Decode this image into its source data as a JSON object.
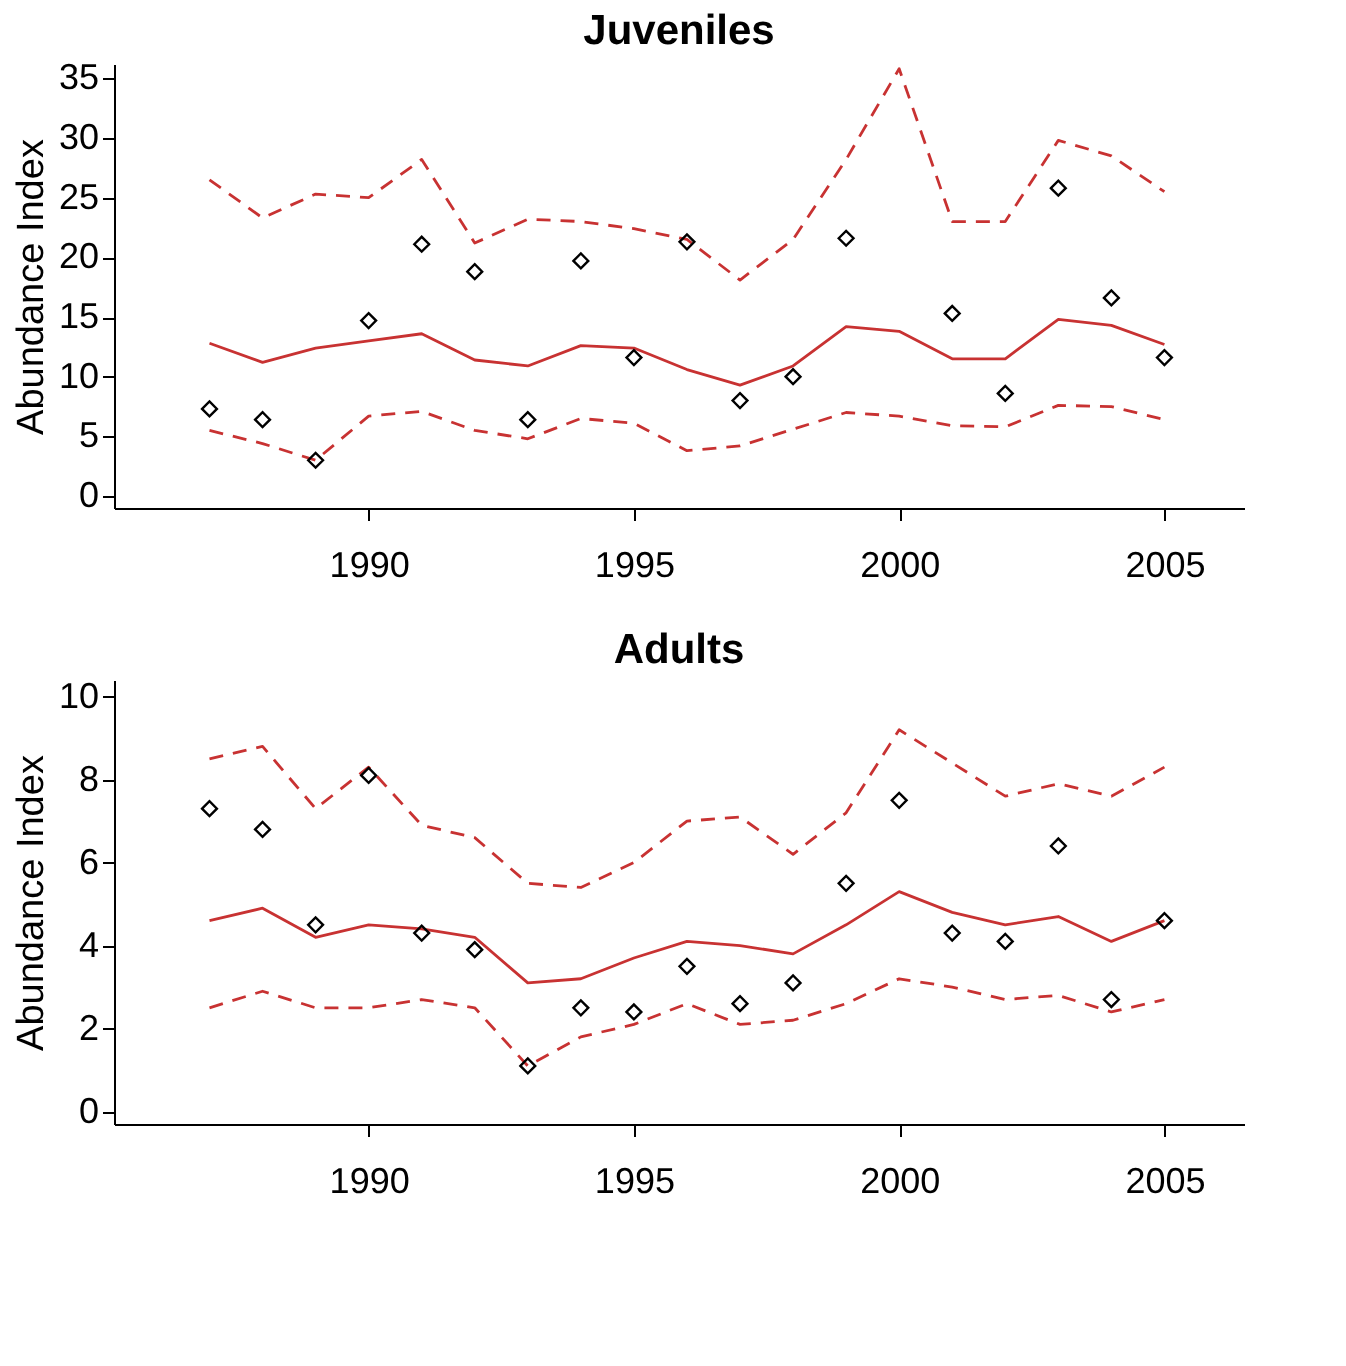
{
  "chart_data": [
    {
      "type": "line",
      "title": "Juveniles",
      "ylabel": "Abundance Index",
      "grid": false,
      "x": [
        1987,
        1988,
        1989,
        1990,
        1991,
        1992,
        1993,
        1994,
        1995,
        1996,
        1997,
        1998,
        1999,
        2000,
        2001,
        2002,
        2003,
        2004,
        2005
      ],
      "xlim": [
        1985.2,
        2006.5
      ],
      "xticks": [
        1990,
        1995,
        2000,
        2005
      ],
      "ylim": [
        -1,
        36.2
      ],
      "yticks": [
        0,
        5,
        10,
        15,
        20,
        25,
        30,
        35
      ],
      "series": [
        {
          "color": "#c83232",
          "line_style": "solid",
          "values": [
            12.8,
            11.2,
            12.4,
            13.0,
            13.6,
            11.4,
            10.9,
            12.6,
            12.4,
            10.6,
            9.3,
            10.9,
            14.2,
            13.8,
            11.5,
            11.5,
            14.8,
            14.3,
            12.7
          ]
        },
        {
          "type": "line",
          "color": "#c83232",
          "line_style": "dashed",
          "values": [
            26.5,
            23.3,
            25.3,
            25.0,
            28.2,
            21.2,
            23.2,
            23.0,
            22.4,
            21.5,
            18.1,
            21.5,
            28.2,
            35.8,
            23.0,
            23.0,
            29.8,
            28.5,
            25.5
          ]
        },
        {
          "type": "line",
          "color": "#c83232",
          "line_style": "dashed",
          "values": [
            5.5,
            4.4,
            3.0,
            6.7,
            7.1,
            5.5,
            4.8,
            6.5,
            6.1,
            3.8,
            4.2,
            5.6,
            7.0,
            6.7,
            5.9,
            5.8,
            7.6,
            7.5,
            6.4
          ]
        },
        {
          "type": "scatter",
          "color": "#000000",
          "marker": "diamond",
          "values": [
            7.3,
            6.4,
            3.0,
            14.7,
            21.1,
            18.8,
            6.4,
            19.7,
            11.6,
            21.3,
            8.0,
            10.0,
            21.6,
            null,
            15.3,
            8.6,
            25.8,
            16.6,
            11.6
          ]
        }
      ]
    },
    {
      "type": "line",
      "title": "Adults",
      "ylabel": "Abundance Index",
      "grid": false,
      "x": [
        1987,
        1988,
        1989,
        1990,
        1991,
        1992,
        1993,
        1994,
        1995,
        1996,
        1997,
        1998,
        1999,
        2000,
        2001,
        2002,
        2003,
        2004,
        2005
      ],
      "xlim": [
        1985.2,
        2006.5
      ],
      "xticks": [
        1990,
        1995,
        2000,
        2005
      ],
      "ylim": [
        -0.3,
        10.4
      ],
      "yticks": [
        0,
        2,
        4,
        6,
        8,
        10
      ],
      "series": [
        {
          "color": "#c83232",
          "line_style": "solid",
          "values": [
            4.6,
            4.9,
            4.2,
            4.5,
            4.4,
            4.2,
            3.1,
            3.2,
            3.7,
            4.1,
            4.0,
            3.8,
            4.5,
            5.3,
            4.8,
            4.5,
            4.7,
            4.1,
            4.6
          ]
        },
        {
          "type": "line",
          "color": "#c83232",
          "line_style": "dashed",
          "values": [
            8.5,
            8.8,
            7.3,
            8.3,
            6.9,
            6.6,
            5.5,
            5.4,
            6.0,
            7.0,
            7.1,
            6.2,
            7.2,
            9.2,
            8.4,
            7.6,
            7.9,
            7.6,
            8.3
          ]
        },
        {
          "type": "line",
          "color": "#c83232",
          "line_style": "dashed",
          "values": [
            2.5,
            2.9,
            2.5,
            2.5,
            2.7,
            2.5,
            1.1,
            1.8,
            2.1,
            2.6,
            2.1,
            2.2,
            2.6,
            3.2,
            3.0,
            2.7,
            2.8,
            2.4,
            2.7
          ]
        },
        {
          "type": "scatter",
          "color": "#000000",
          "marker": "diamond",
          "values": [
            7.3,
            6.8,
            4.5,
            8.1,
            4.3,
            3.9,
            1.1,
            2.5,
            2.4,
            3.5,
            2.6,
            3.1,
            5.5,
            7.5,
            4.3,
            4.1,
            6.4,
            2.7,
            4.6
          ]
        }
      ]
    }
  ]
}
